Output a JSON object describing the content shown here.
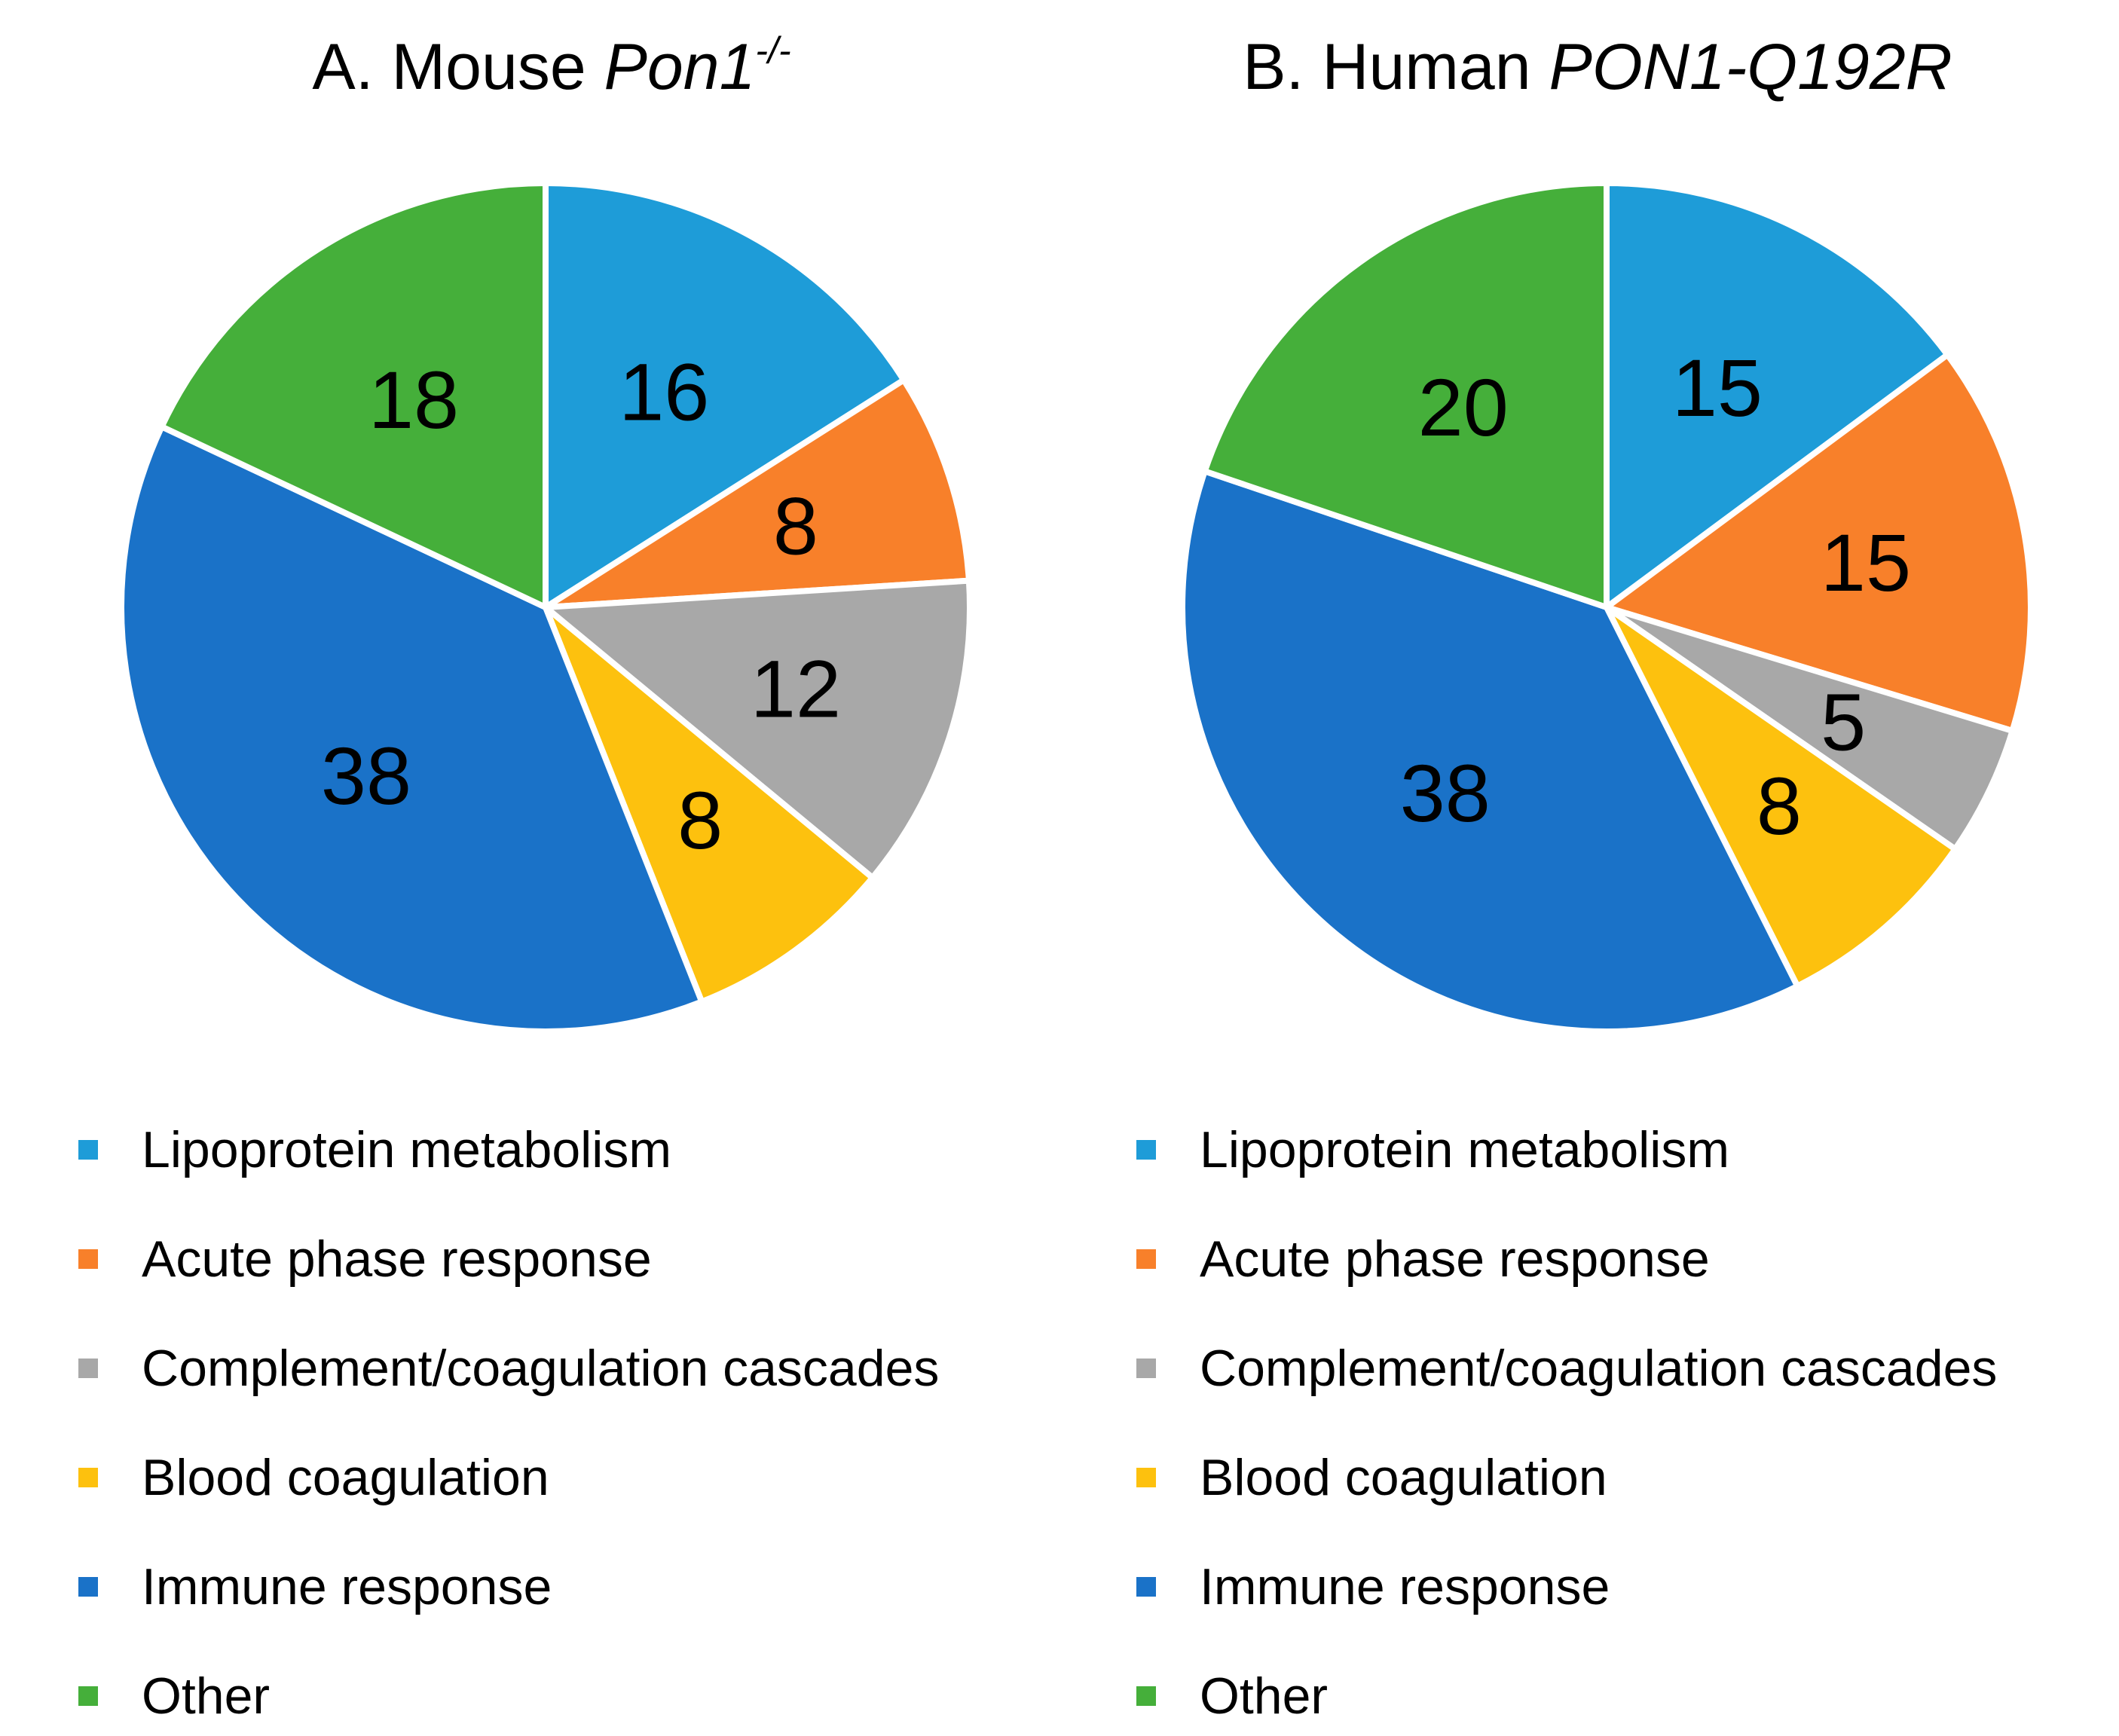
{
  "chart_data": [
    {
      "type": "pie",
      "title": {
        "prefix": "A. Mouse ",
        "gene": "Pon1",
        "superscript": "-/-"
      },
      "categories": [
        "Lipoprotein metabolism",
        "Acute phase response",
        "Complement/coagulation cascades",
        "Blood coagulation",
        "Immune response",
        "Other"
      ],
      "values": [
        16,
        8,
        12,
        8,
        38,
        18
      ],
      "colors": [
        "#1E9CD8",
        "#F8802A",
        "#A8A8A8",
        "#FDC10E",
        "#1A72C8",
        "#45AF3A"
      ],
      "legend_position": "bottom"
    },
    {
      "type": "pie",
      "title": {
        "prefix": "B. Human ",
        "gene": "PON1-Q192R",
        "superscript": ""
      },
      "categories": [
        "Lipoprotein metabolism",
        "Acute phase response",
        "Complement/coagulation cascades",
        "Blood coagulation",
        "Immune response",
        "Other"
      ],
      "values": [
        15,
        15,
        5,
        8,
        38,
        20
      ],
      "colors": [
        "#1E9CD8",
        "#F8802A",
        "#A8A8A8",
        "#FDC10E",
        "#1A72C8",
        "#45AF3A"
      ],
      "legend_position": "bottom"
    }
  ]
}
